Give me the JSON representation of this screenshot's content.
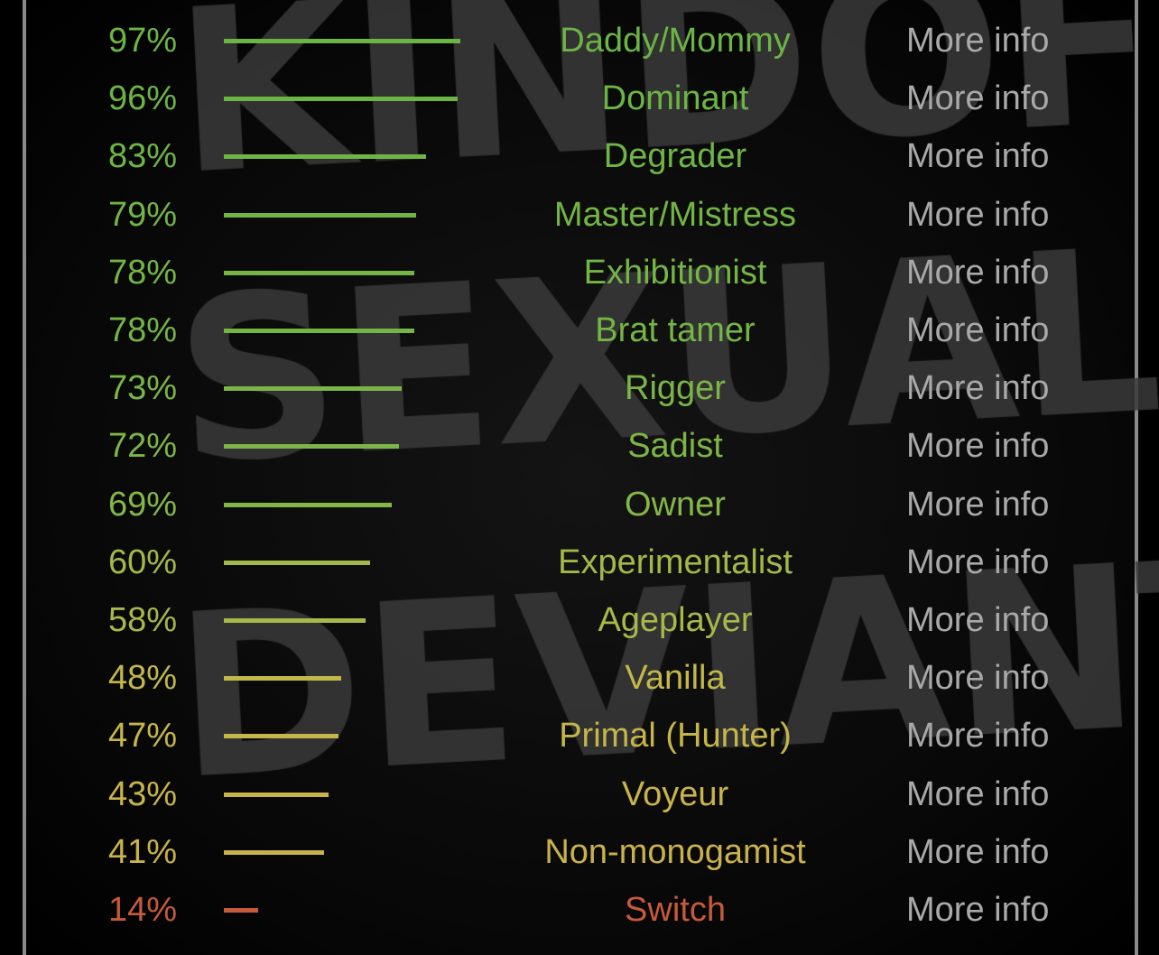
{
  "watermark": "KINDOF SEXUAL DEVIANT",
  "more_info_label": "More info",
  "results": [
    {
      "percent": 97,
      "label": "97%",
      "name": "Daddy/Mommy",
      "color": "#6cb545"
    },
    {
      "percent": 96,
      "label": "96%",
      "name": "Dominant",
      "color": "#6cb545"
    },
    {
      "percent": 83,
      "label": "83%",
      "name": "Degrader",
      "color": "#6fb545"
    },
    {
      "percent": 79,
      "label": "79%",
      "name": "Master/Mistress",
      "color": "#72b545"
    },
    {
      "percent": 78,
      "label": "78%",
      "name": "Exhibitionist",
      "color": "#74b545"
    },
    {
      "percent": 78,
      "label": "78%",
      "name": "Brat tamer",
      "color": "#74b545"
    },
    {
      "percent": 73,
      "label": "73%",
      "name": "Rigger",
      "color": "#7bb546"
    },
    {
      "percent": 72,
      "label": "72%",
      "name": "Sadist",
      "color": "#7db646"
    },
    {
      "percent": 69,
      "label": "69%",
      "name": "Owner",
      "color": "#84b747"
    },
    {
      "percent": 60,
      "label": "60%",
      "name": "Experimentalist",
      "color": "#a2b849"
    },
    {
      "percent": 58,
      "label": "58%",
      "name": "Ageplayer",
      "color": "#a8b849"
    },
    {
      "percent": 48,
      "label": "48%",
      "name": "Vanilla",
      "color": "#c2b84a"
    },
    {
      "percent": 47,
      "label": "47%",
      "name": "Primal (Hunter)",
      "color": "#c5b64a"
    },
    {
      "percent": 43,
      "label": "43%",
      "name": "Voyeur",
      "color": "#c9b44a"
    },
    {
      "percent": 41,
      "label": "41%",
      "name": "Non-monogamist",
      "color": "#c9b24a"
    },
    {
      "percent": 14,
      "label": "14%",
      "name": "Switch",
      "color": "#c65a3c"
    }
  ]
}
